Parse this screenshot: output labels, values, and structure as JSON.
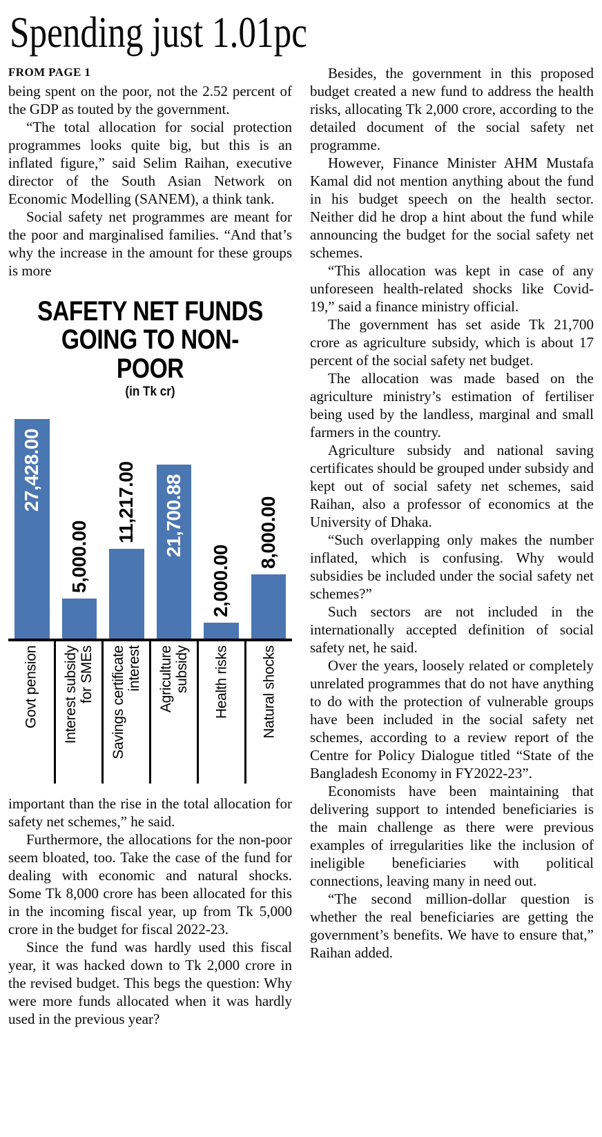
{
  "article": {
    "headline": "Spending just 1.01pc",
    "kicker": "FROM PAGE 1",
    "left_column": {
      "before_chart": [
        {
          "text": "being spent on the poor, not the 2.52 percent of the GDP as touted by the government.",
          "indent": false
        },
        {
          "text": "“The total allocation for social protection programmes looks quite big, but this is an inflated figure,” said Selim Raihan, executive director of the South Asian Network on Economic Modelling (SANEM), a think tank."
        },
        {
          "text": "Social safety net programmes are meant for the poor and marginalised families. “And that’s why the increase in the amount for these groups is more"
        }
      ],
      "after_chart": [
        {
          "text": "important than the rise in the total allocation for safety net schemes,” he said.",
          "indent": false
        },
        {
          "text": "Furthermore, the allocations for the non-poor seem bloated, too. Take the case of the fund for dealing with economic and natural shocks. Some Tk 8,000 crore has been allocated for this in the incoming fiscal year, up from Tk 5,000 crore in the budget for fiscal 2022-23."
        },
        {
          "text": "Since the fund was hardly used this fiscal year, it was hacked down to Tk 2,000 crore in the revised budget. This begs the question: Why were more funds allocated when it was hardly used in the previous year?"
        }
      ]
    },
    "right_column": {
      "paragraphs": [
        {
          "text": "Besides, the government in this proposed budget created a new fund to address the health risks, allocating Tk 2,000 crore, according to the detailed document of the social safety net programme."
        },
        {
          "text": "However, Finance Minister AHM Mustafa Kamal did not mention anything about the fund in his budget speech on the health sector. Neither did he drop a hint about the fund while announcing the budget for the social safety net schemes."
        },
        {
          "text": "“This allocation was kept in case of any unforeseen health-related shocks like Covid-19,” said a finance ministry official."
        },
        {
          "text": "The government has set aside Tk 21,700 crore as agriculture subsidy, which is about 17 percent of the social safety net budget."
        },
        {
          "text": "The allocation was made based on the agriculture ministry’s estimation of fertiliser being used by the landless, marginal and small farmers in the country."
        },
        {
          "text": "Agriculture subsidy and national saving certificates should be grouped under subsidy and kept out of social safety net schemes, said Raihan, also a professor of economics at the University of Dhaka."
        },
        {
          "text": "“Such overlapping only makes the number inflated, which is confusing. Why would subsidies be included under the social safety net schemes?”"
        },
        {
          "text": "Such sectors are not included in the internationally accepted definition of social safety net, he said."
        },
        {
          "text": "Over the years, loosely related or completely unrelated programmes that do not have anything to do with the protection of vulnerable groups have been included in the social safety net schemes, according to a review report of the Centre for Policy Dialogue titled “State of the Bangladesh Economy in FY2022-23”."
        },
        {
          "text": "Economists have been maintaining that delivering support to intended beneficiaries is the main challenge as there were previous examples of irregularities like the inclusion of ineligible beneficiaries with political connections, leaving many in need out."
        },
        {
          "text": "“The second million-dollar question is whether the real beneficiaries are getting the government’s benefits. We have to ensure that,” Raihan added."
        }
      ]
    }
  },
  "chart_data": {
    "type": "bar",
    "title": "SAFETY NET FUNDS GOING TO NON-POOR",
    "title_lines": [
      "SAFETY NET FUNDS",
      "GOING TO NON-POOR"
    ],
    "subtitle": "(in Tk cr)",
    "unit": "Tk crore",
    "categories": [
      "Govt pension",
      "Interest subsidy for SMEs",
      "Savings certificate interest",
      "Agriculture subsidy",
      "Health risks",
      "Natural shocks"
    ],
    "category_lines": [
      [
        "Govt pension"
      ],
      [
        "Interest subsidy",
        "for SMEs"
      ],
      [
        "Savings certificate",
        "interest"
      ],
      [
        "Agriculture",
        "subsidy"
      ],
      [
        "Health risks"
      ],
      [
        "Natural shocks"
      ]
    ],
    "values": [
      27428.0,
      5000.0,
      11217.0,
      21700.88,
      2000.0,
      8000.0
    ],
    "value_labels": [
      "27,428.00",
      "5,000.00",
      "11,217.00",
      "21,700.88",
      "2,000.00",
      "8,000.00"
    ],
    "label_inside": [
      true,
      false,
      false,
      true,
      false,
      false
    ],
    "bar_color": "#4a76b2",
    "ylim": [
      0,
      27428
    ],
    "grid": false,
    "legend": "none"
  }
}
